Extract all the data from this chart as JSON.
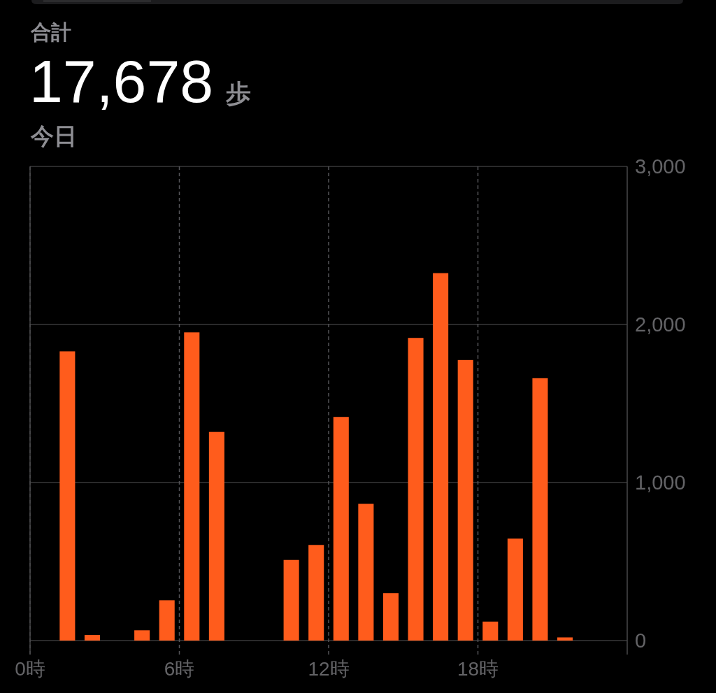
{
  "chart_data": {
    "type": "bar",
    "title": "合計",
    "subtitle": "今日",
    "annotations": [
      "17,678",
      "歩"
    ],
    "x": [
      1.5,
      2.5,
      4.5,
      5.5,
      6.5,
      7.5,
      10.5,
      11.5,
      12.5,
      13.5,
      14.5,
      15.5,
      16.5,
      17.5,
      18.5,
      19.5,
      20.5,
      21.5
    ],
    "values": [
      1830,
      35,
      65,
      255,
      1950,
      1320,
      510,
      605,
      1415,
      865,
      300,
      1915,
      2325,
      1775,
      120,
      645,
      1660,
      20
    ],
    "color": "#ff5c1c",
    "xlim": [
      0,
      24
    ],
    "xticks": [
      {
        "value": 0,
        "label": "0時"
      },
      {
        "value": 6,
        "label": "6時"
      },
      {
        "value": 12,
        "label": "12時"
      },
      {
        "value": 18,
        "label": "18時"
      }
    ],
    "ylim": [
      0,
      3000
    ],
    "yticks": [
      0,
      {
        "value": 1000,
        "label": "1,000"
      },
      {
        "value": 2000,
        "label": "2,000"
      },
      {
        "value": 3000,
        "label": "3,000"
      }
    ],
    "grid": true
  }
}
